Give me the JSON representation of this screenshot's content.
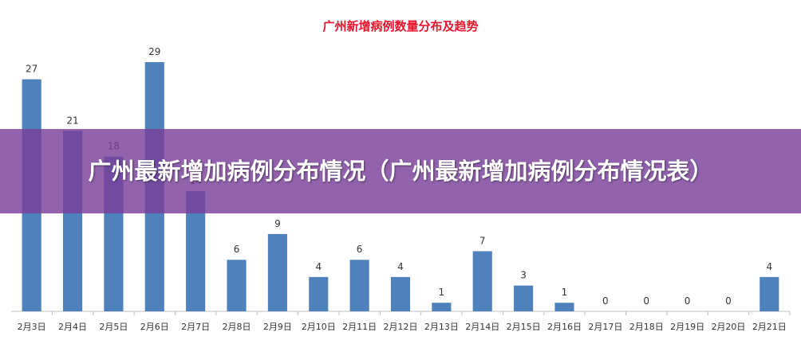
{
  "chart_data": {
    "type": "bar",
    "title": "广州新增病例数量分布及趋势",
    "xlabel": "",
    "ylabel": "",
    "categories": [
      "2月3日",
      "2月4日",
      "2月5日",
      "2月6日",
      "2月7日",
      "2月8日",
      "2月9日",
      "2月10日",
      "2月11日",
      "2月12日",
      "2月13日",
      "2月14日",
      "2月15日",
      "2月16日",
      "2月17日",
      "2月18日",
      "2月19日",
      "2月20日",
      "2月21日"
    ],
    "values": [
      27,
      21,
      18,
      29,
      14,
      6,
      9,
      4,
      6,
      4,
      1,
      7,
      3,
      1,
      0,
      0,
      0,
      0,
      4
    ],
    "ylim": [
      0,
      29
    ],
    "grid": false,
    "legend": "none",
    "bar_color": "#4f81bd",
    "title_color": "#e8142b"
  },
  "overlay": {
    "text": "广州最新增加病例分布情况（广州最新增加病例分布情况表）",
    "background": "#7a409b"
  }
}
